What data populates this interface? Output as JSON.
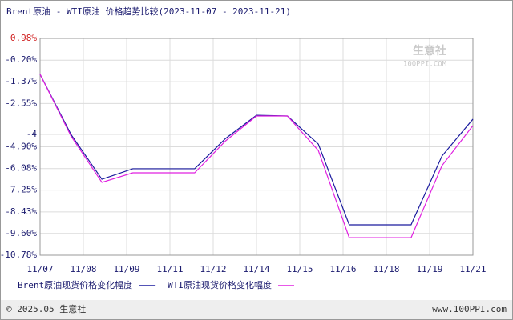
{
  "chart_data": {
    "type": "line",
    "title": "Brent原油 - WTI原油 价格趋势比较(2023-11-07 - 2023-11-21)",
    "x": [
      0,
      1,
      2,
      3,
      4,
      5,
      6,
      7,
      8,
      9,
      10,
      11,
      12,
      13,
      14
    ],
    "xlim": [
      0,
      14
    ],
    "xticks": [
      {
        "value": 0,
        "label": "11/07"
      },
      {
        "value": 1.4,
        "label": "11/08"
      },
      {
        "value": 2.8,
        "label": "11/09"
      },
      {
        "value": 4.2,
        "label": "11/11"
      },
      {
        "value": 5.6,
        "label": "11/12"
      },
      {
        "value": 7,
        "label": "11/14"
      },
      {
        "value": 8.4,
        "label": "11/15"
      },
      {
        "value": 9.8,
        "label": "11/16"
      },
      {
        "value": 11.2,
        "label": "11/18"
      },
      {
        "value": 12.6,
        "label": "11/19"
      },
      {
        "value": 14,
        "label": "11/21"
      }
    ],
    "ylim": [
      -10.78,
      0.98
    ],
    "yticks": [
      {
        "value": 0.98,
        "label": "0.98%"
      },
      {
        "value": -0.2,
        "label": "-0.20%"
      },
      {
        "value": -1.37,
        "label": "-1.37%"
      },
      {
        "value": -2.55,
        "label": "-2.55%"
      },
      {
        "value": -4.23,
        "label": "-4"
      },
      {
        "value": -4.9,
        "label": "-4.90%"
      },
      {
        "value": -6.08,
        "label": "-6.08%"
      },
      {
        "value": -7.25,
        "label": "-7.25%"
      },
      {
        "value": -8.43,
        "label": "-8.43%"
      },
      {
        "value": -9.6,
        "label": "-9.60%"
      },
      {
        "value": -10.78,
        "label": "-10.78%"
      }
    ],
    "grid": true,
    "series": [
      {
        "name": "Brent原油现货价格变化幅度",
        "color": "#1a1a9e",
        "values": [
          -0.97,
          -4.23,
          -6.66,
          -6.09,
          -6.09,
          -6.09,
          -4.45,
          -3.19,
          -3.23,
          -4.75,
          -9.13,
          -9.13,
          -9.13,
          -5.4,
          -3.4
        ]
      },
      {
        "name": "WTI原油现货价格变化幅度",
        "color": "#e020e0",
        "values": [
          -0.97,
          -4.32,
          -6.83,
          -6.31,
          -6.31,
          -6.31,
          -4.58,
          -3.23,
          -3.23,
          -5.1,
          -9.83,
          -9.83,
          -9.83,
          -5.92,
          -3.75
        ]
      }
    ],
    "watermark": [
      "生意社",
      "100PPI.COM"
    ],
    "footer": {
      "left": "© 2025.05 生意社",
      "right": "www.100PPI.com"
    }
  }
}
